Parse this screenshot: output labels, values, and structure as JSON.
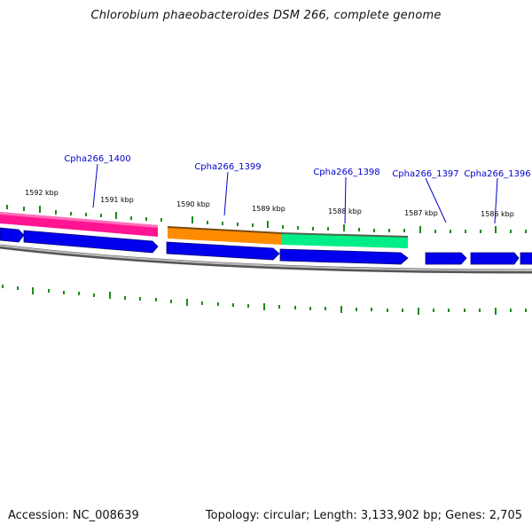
{
  "title": "Chlorobium phaeobacteroides DSM 266, complete genome",
  "footer": {
    "accession": "Accession: NC_008639",
    "topology": "Topology: circular; Length: 3,133,902 bp; Genes: 2,705"
  },
  "colors": {
    "gene_label": "#0000cc",
    "tick": "#1a8c1a",
    "backbone": "#808080",
    "cds_arrow": "#0000ee",
    "feature_pink": "#ff1493",
    "feature_orange": "#ff8c00",
    "feature_green": "#00ee88"
  },
  "diagram": {
    "kbp_labels": [
      "1592 kbp",
      "1591 kbp",
      "1590 kbp",
      "1589 kbp",
      "1588 kbp",
      "1587 kbp",
      "1586 kbp"
    ],
    "gene_labels": [
      "Cpha266_1400",
      "Cpha266_1399",
      "Cpha266_1398",
      "Cpha266_1397",
      "Cpha266_1396"
    ],
    "features": [
      {
        "color": "pink"
      },
      {
        "color": "orange"
      },
      {
        "color": "green"
      }
    ],
    "cds_arrow_count": 7
  }
}
